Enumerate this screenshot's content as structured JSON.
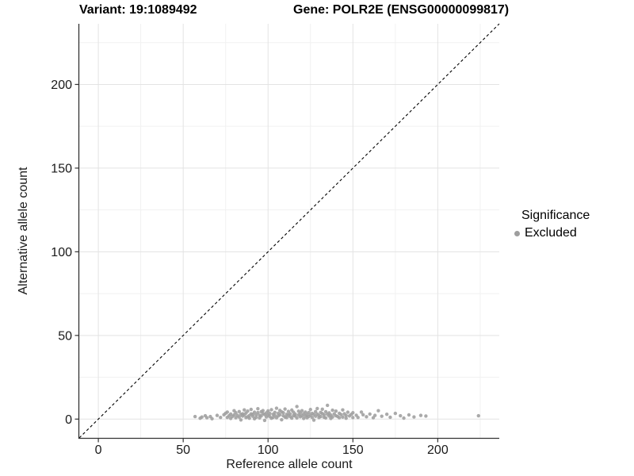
{
  "titles": {
    "variant": "Variant: 19:1089492",
    "gene": "Gene: POLR2E (ENSG00000099817)"
  },
  "colors": {
    "background": "#ffffff",
    "grid_major": "#e3e3e3",
    "grid_minor": "#f1f1f1",
    "axis_line": "#333333",
    "tick_text": "#1a1a1a",
    "identity_line": "#000000",
    "point": "#9e9e9e"
  },
  "chart_data": {
    "type": "scatter",
    "title_left": "Variant: 19:1089492",
    "title_right": "Gene: POLR2E (ENSG00000099817)",
    "xlabel": "Reference allele count",
    "ylabel": "Alternative allele count",
    "xlim": [
      -11.25,
      236.25
    ],
    "ylim": [
      -11.25,
      236.25
    ],
    "x_ticks": [
      0,
      50,
      100,
      150,
      200
    ],
    "y_ticks": [
      0,
      50,
      100,
      150,
      200
    ],
    "x_minor_ticks": [
      25,
      75,
      125,
      175,
      225
    ],
    "y_minor_ticks": [
      25,
      75,
      125,
      175,
      225
    ],
    "grid": true,
    "identity_line": {
      "equation": "y = x",
      "style": "dashed",
      "color": "#000000"
    },
    "legend": {
      "title": "Significance",
      "position": "right",
      "items": [
        {
          "label": "Excluded",
          "color": "#9e9e9e"
        }
      ]
    },
    "series": [
      {
        "name": "Excluded",
        "color": "#9e9e9e",
        "points": [
          [
            57,
            1.5
          ],
          [
            60,
            0.5
          ],
          [
            61,
            1.2
          ],
          [
            63,
            2.0
          ],
          [
            64,
            0.8
          ],
          [
            66,
            1.5
          ],
          [
            67,
            0.2
          ],
          [
            70,
            2.2
          ],
          [
            72,
            1.0
          ],
          [
            74,
            2.6
          ],
          [
            75,
            3.5
          ],
          [
            76,
            1.0
          ],
          [
            76,
            4.2
          ],
          [
            77,
            2.0
          ],
          [
            78,
            0.4
          ],
          [
            78,
            3.0
          ],
          [
            79,
            1.6
          ],
          [
            80,
            2.5
          ],
          [
            80,
            5.0
          ],
          [
            81,
            0.8
          ],
          [
            81,
            3.8
          ],
          [
            82,
            2.2
          ],
          [
            83,
            1.2
          ],
          [
            83,
            4.5
          ],
          [
            84,
            2.8
          ],
          [
            84,
            -0.5
          ],
          [
            85,
            3.2
          ],
          [
            85,
            1.8
          ],
          [
            86,
            5.5
          ],
          [
            86,
            2.5
          ],
          [
            87,
            0.9
          ],
          [
            87,
            3.6
          ],
          [
            88,
            1.4
          ],
          [
            88,
            4.8
          ],
          [
            89,
            2.1
          ],
          [
            89,
            0.5
          ],
          [
            90,
            3.1
          ],
          [
            90,
            5.8
          ],
          [
            91,
            1.7
          ],
          [
            91,
            2.9
          ],
          [
            92,
            0.2
          ],
          [
            92,
            4.1
          ],
          [
            93,
            2.6
          ],
          [
            93,
            1.1
          ],
          [
            94,
            3.9
          ],
          [
            94,
            6.2
          ],
          [
            95,
            2.3
          ],
          [
            95,
            0.7
          ],
          [
            96,
            4.4
          ],
          [
            96,
            1.9
          ],
          [
            97,
            3.3
          ],
          [
            97,
            5.1
          ],
          [
            98,
            2.7
          ],
          [
            98,
            -0.8
          ],
          [
            99,
            3.7
          ],
          [
            99,
            1.3
          ],
          [
            100,
            2.4
          ],
          [
            100,
            4.9
          ],
          [
            101,
            1.6
          ],
          [
            101,
            3.4
          ],
          [
            102,
            0.5
          ],
          [
            102,
            5.6
          ],
          [
            103,
            2.9
          ],
          [
            103,
            1.0
          ],
          [
            104,
            4.0
          ],
          [
            104,
            2.2
          ],
          [
            105,
            6.5
          ],
          [
            105,
            0.8
          ],
          [
            106,
            3.5
          ],
          [
            106,
            1.9
          ],
          [
            107,
            5.2
          ],
          [
            107,
            2.6
          ],
          [
            108,
            -0.4
          ],
          [
            108,
            4.3
          ],
          [
            109,
            2.0
          ],
          [
            109,
            3.8
          ],
          [
            110,
            1.2
          ],
          [
            110,
            6.0
          ],
          [
            111,
            2.8
          ],
          [
            111,
            0.9
          ],
          [
            112,
            4.6
          ],
          [
            112,
            2.4
          ],
          [
            113,
            1.5
          ],
          [
            113,
            3.2
          ],
          [
            114,
            5.4
          ],
          [
            114,
            0.6
          ],
          [
            115,
            2.1
          ],
          [
            115,
            4.1
          ],
          [
            116,
            1.8
          ],
          [
            116,
            3.0
          ],
          [
            117,
            7.5
          ],
          [
            117,
            0.7
          ],
          [
            118,
            2.5
          ],
          [
            118,
            4.7
          ],
          [
            119,
            1.4
          ],
          [
            119,
            3.6
          ],
          [
            120,
            2.0
          ],
          [
            120,
            5.0
          ],
          [
            121,
            0.4
          ],
          [
            121,
            3.1
          ],
          [
            122,
            1.9
          ],
          [
            122,
            4.2
          ],
          [
            123,
            2.7
          ],
          [
            123,
            0.8
          ],
          [
            124,
            3.9
          ],
          [
            124,
            1.6
          ],
          [
            125,
            5.7
          ],
          [
            125,
            2.3
          ],
          [
            126,
            1.0
          ],
          [
            126,
            3.4
          ],
          [
            127,
            2.8
          ],
          [
            127,
            -0.6
          ],
          [
            128,
            4.5
          ],
          [
            128,
            1.7
          ],
          [
            129,
            3.0
          ],
          [
            129,
            6.3
          ],
          [
            130,
            2.2
          ],
          [
            130,
            0.9
          ],
          [
            131,
            4.0
          ],
          [
            131,
            1.5
          ],
          [
            132,
            3.3
          ],
          [
            132,
            5.9
          ],
          [
            133,
            1.1
          ],
          [
            133,
            2.6
          ],
          [
            134,
            4.4
          ],
          [
            134,
            0.7
          ],
          [
            135,
            2.9
          ],
          [
            135,
            8.2
          ],
          [
            136,
            1.8
          ],
          [
            136,
            3.7
          ],
          [
            137,
            0.4
          ],
          [
            137,
            2.4
          ],
          [
            138,
            5.3
          ],
          [
            138,
            1.3
          ],
          [
            139,
            3.1
          ],
          [
            140,
            2.0
          ],
          [
            140,
            4.8
          ],
          [
            141,
            1.6
          ],
          [
            142,
            3.5
          ],
          [
            142,
            0.8
          ],
          [
            143,
            2.7
          ],
          [
            144,
            5.5
          ],
          [
            144,
            1.2
          ],
          [
            145,
            3.2
          ],
          [
            146,
            2.1
          ],
          [
            146,
            0.5
          ],
          [
            147,
            4.1
          ],
          [
            148,
            1.9
          ],
          [
            149,
            2.8
          ],
          [
            150,
            0.9
          ],
          [
            150,
            3.8
          ],
          [
            152,
            2.3
          ],
          [
            153,
            1.0
          ],
          [
            155,
            4.2
          ],
          [
            156,
            2.6
          ],
          [
            158,
            1.4
          ],
          [
            160,
            3.0
          ],
          [
            162,
            0.8
          ],
          [
            163,
            2.2
          ],
          [
            165,
            5.0
          ],
          [
            167,
            1.7
          ],
          [
            170,
            2.9
          ],
          [
            172,
            1.1
          ],
          [
            175,
            3.4
          ],
          [
            178,
            2.0
          ],
          [
            180,
            0.6
          ],
          [
            183,
            2.5
          ],
          [
            186,
            1.3
          ],
          [
            190,
            2.2
          ],
          [
            193,
            1.8
          ],
          [
            224,
            2.0
          ]
        ]
      }
    ]
  }
}
